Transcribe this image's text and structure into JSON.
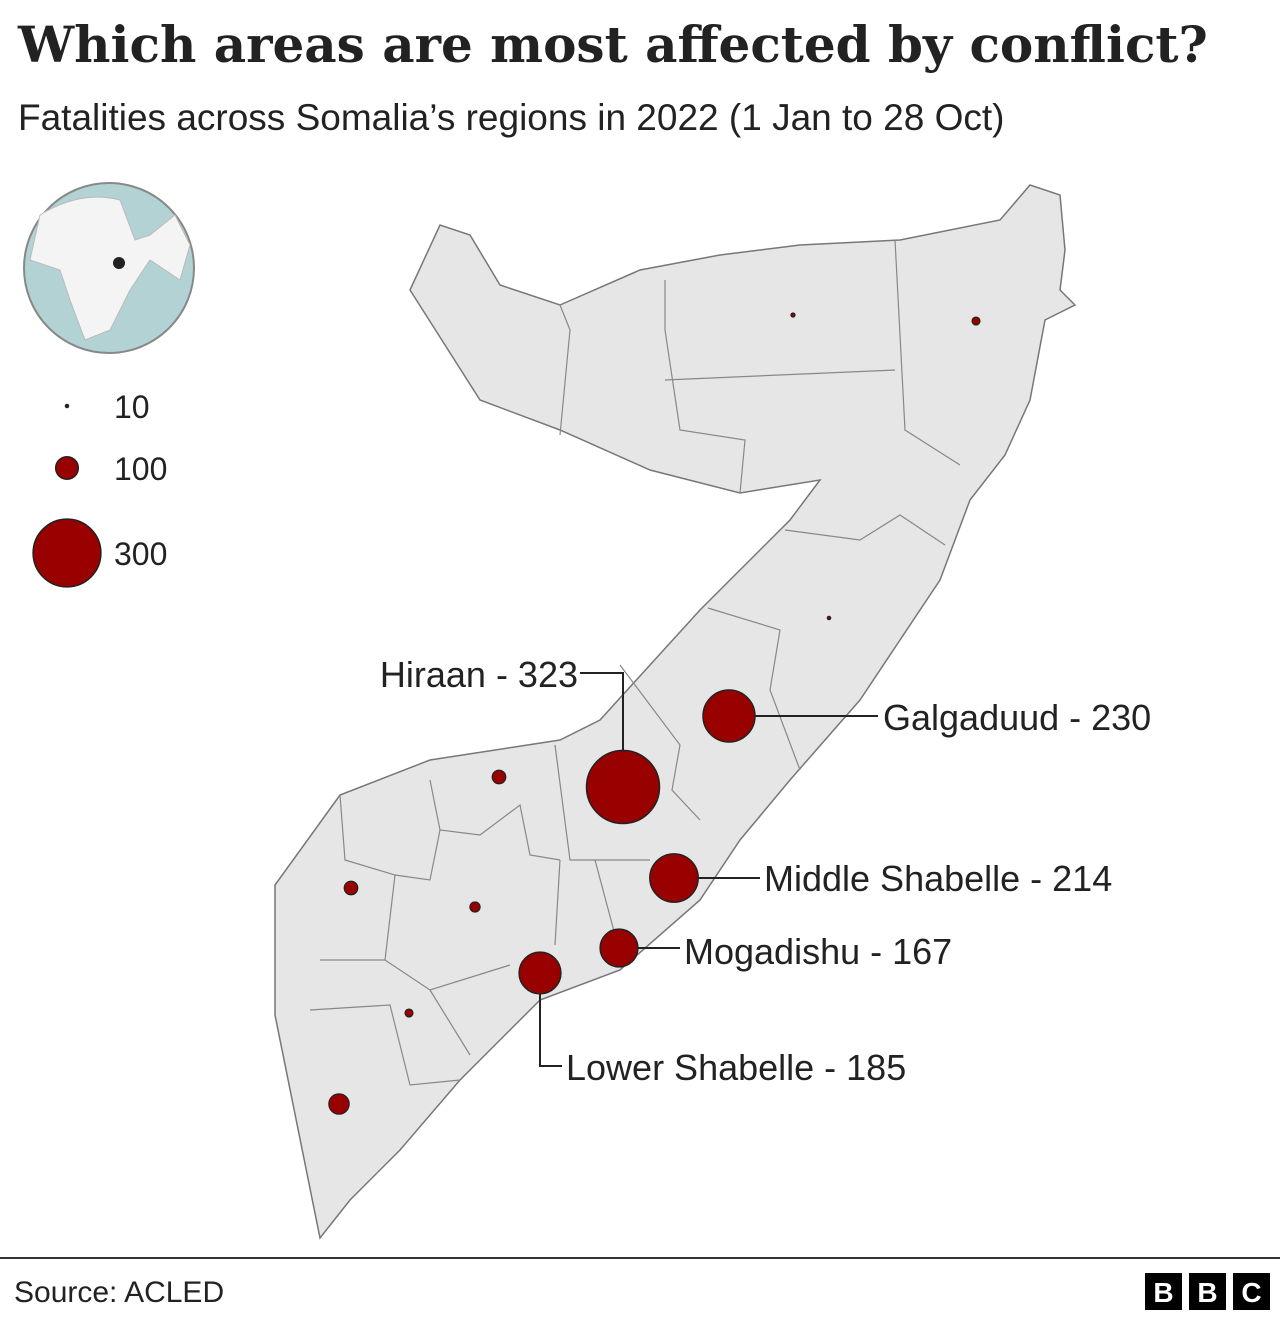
{
  "header": {
    "title": "Which areas are most affected by conflict?",
    "subtitle": "Fatalities across Somalia’s regions in 2022 (1 Jan to 28 Oct)"
  },
  "legend": {
    "values": [
      10,
      100,
      300
    ]
  },
  "map": {
    "type": "proportional-symbol",
    "color": "#990000",
    "labeled_regions": [
      {
        "label": "Hiraan - 323",
        "value": 323
      },
      {
        "label": "Galgaduud - 230",
        "value": 230
      },
      {
        "label": "Middle Shabelle - 214",
        "value": 214
      },
      {
        "label": "Mogadishu - 167",
        "value": 167
      },
      {
        "label": "Lower Shabelle - 185",
        "value": 185
      }
    ],
    "other_values": [
      18,
      35,
      15,
      60,
      60,
      45,
      35,
      90
    ]
  },
  "footer": {
    "source": "Source: ACLED",
    "logo": [
      "B",
      "B",
      "C"
    ]
  }
}
